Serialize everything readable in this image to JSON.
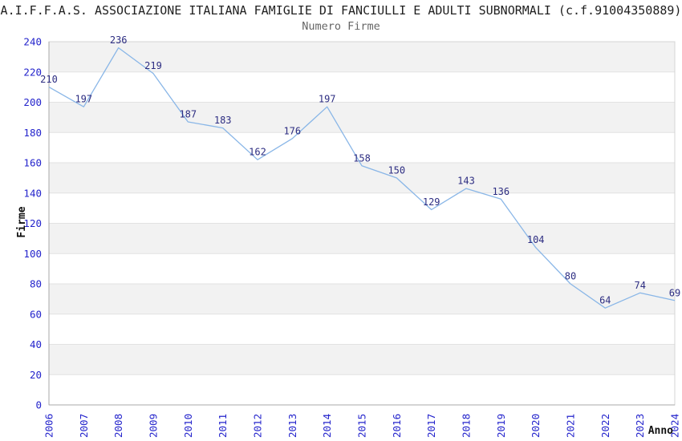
{
  "chart_data": {
    "type": "line",
    "title": "A.I.F.F.A.S. ASSOCIAZIONE ITALIANA FAMIGLIE DI FANCIULLI E ADULTI SUBNORMALI (c.f.91004350889)",
    "subtitle": "Numero Firme",
    "xlabel": "Anno",
    "ylabel": "Firme",
    "categories": [
      "2006",
      "2007",
      "2008",
      "2009",
      "2010",
      "2011",
      "2012",
      "2013",
      "2014",
      "2015",
      "2016",
      "2017",
      "2018",
      "2019",
      "2020",
      "2021",
      "2022",
      "2023",
      "2024"
    ],
    "values": [
      210,
      197,
      236,
      219,
      187,
      183,
      162,
      176,
      197,
      158,
      150,
      129,
      143,
      136,
      104,
      80,
      64,
      74,
      69
    ],
    "ylim": [
      0,
      240
    ],
    "ytick_step": 20,
    "grid": "horizontal-bands",
    "legend": "none",
    "x_tick_rotation": -90,
    "colors": {
      "line": "#89b6e7",
      "data_label": "#2d2d82",
      "tick_label": "#2424cc",
      "axis_title": "#111111",
      "title": "#1f1f1f",
      "subtitle": "#666666",
      "band": "#f2f2f2",
      "band_alt": "#ffffff",
      "gridline": "#e2e2e2",
      "border": "#d4d4d4",
      "axis_line": "#a8a8a8",
      "background": "#ffffff"
    }
  }
}
